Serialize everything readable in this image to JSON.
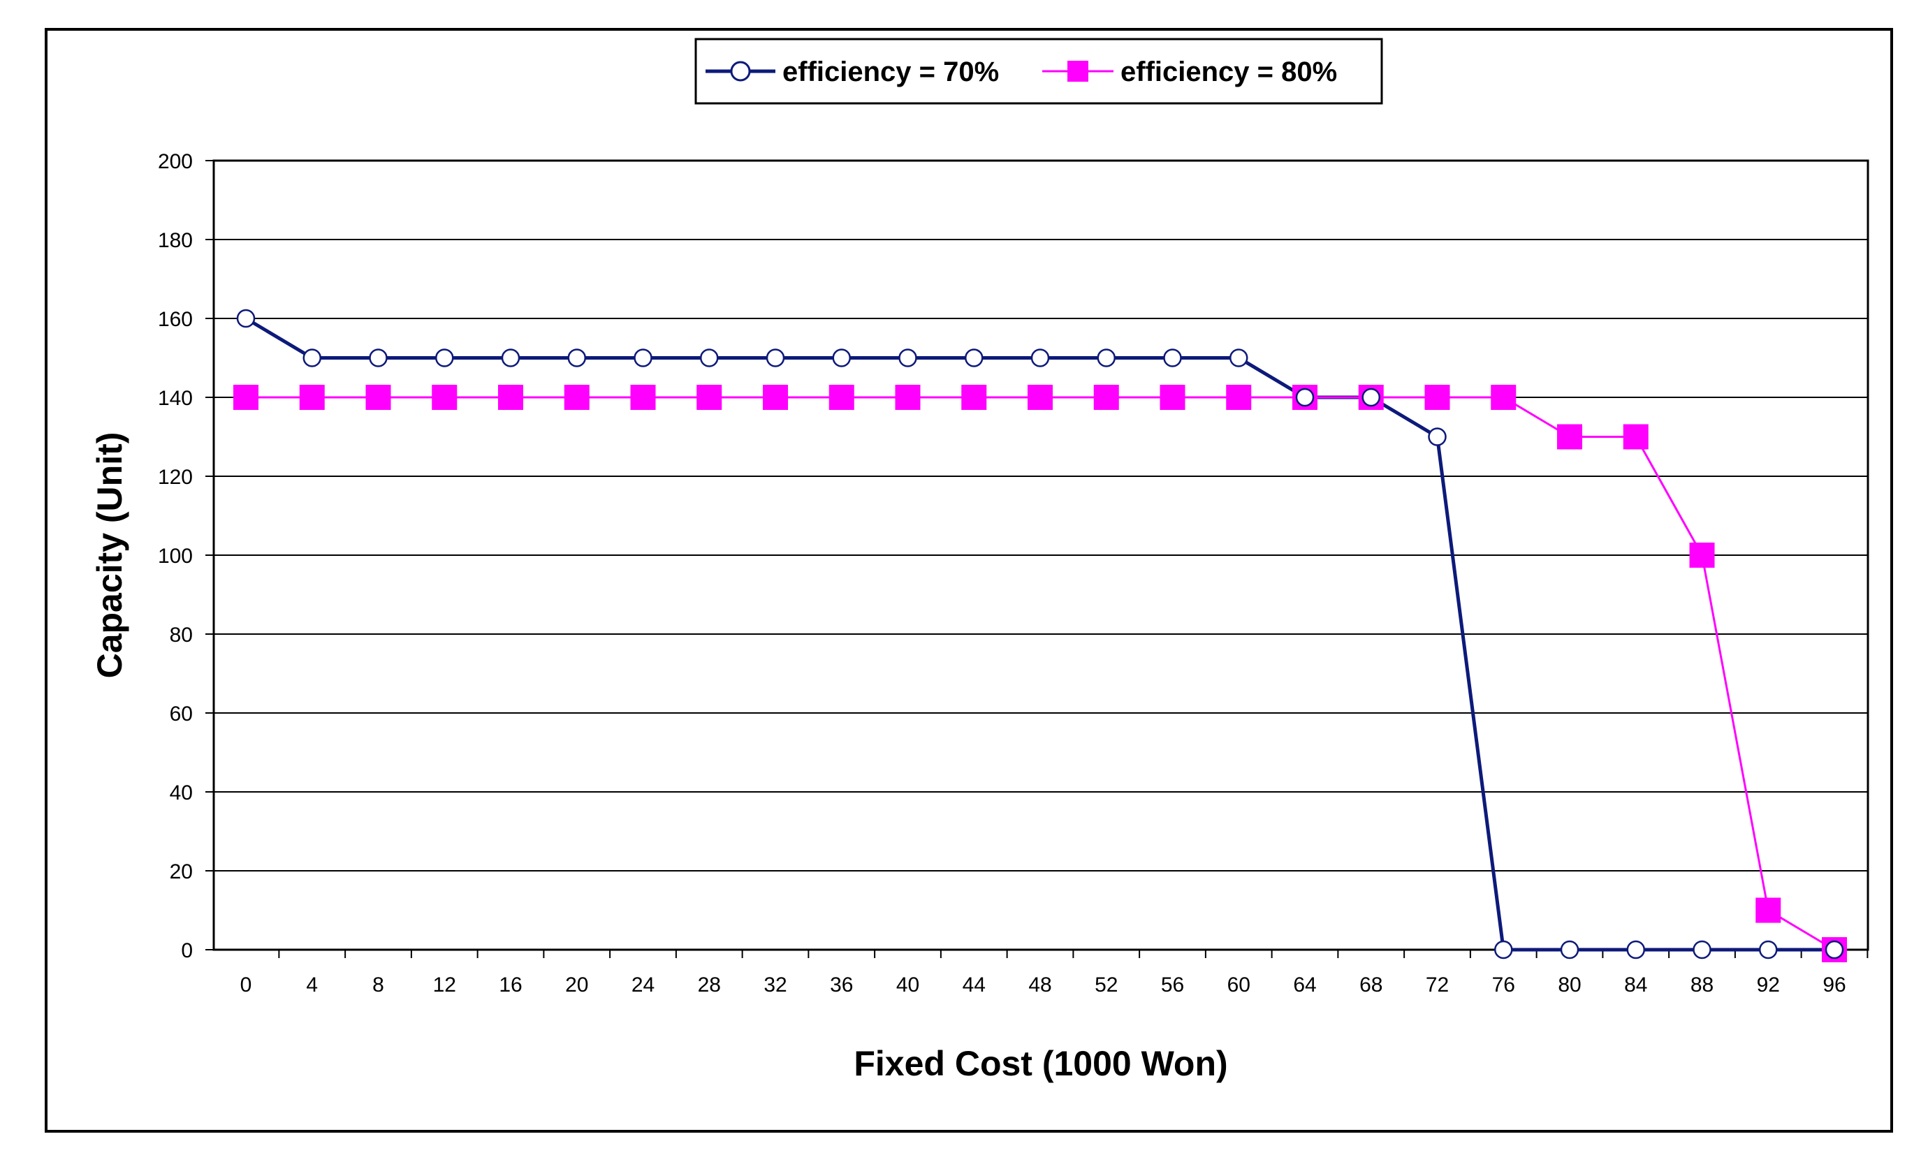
{
  "chart_data": {
    "type": "line",
    "title": "",
    "xlabel": "Fixed Cost (1000 Won)",
    "ylabel": "Capacity (Unit)",
    "x": [
      0,
      4,
      8,
      12,
      16,
      20,
      24,
      28,
      32,
      36,
      40,
      44,
      48,
      52,
      56,
      60,
      64,
      68,
      72,
      76,
      80,
      84,
      88,
      92,
      96
    ],
    "xlim": [
      0,
      96
    ],
    "ylim": [
      0,
      200
    ],
    "yticks": [
      0,
      20,
      40,
      60,
      80,
      100,
      120,
      140,
      160,
      180,
      200
    ],
    "grid": "horizontal",
    "legend": "top-center",
    "series": [
      {
        "name": "efficiency = 70%",
        "marker": "open-circle",
        "color": "#0d1a7a",
        "values": [
          160,
          150,
          150,
          150,
          150,
          150,
          150,
          150,
          150,
          150,
          150,
          150,
          150,
          150,
          150,
          150,
          140,
          140,
          130,
          0,
          0,
          0,
          0,
          0,
          0
        ]
      },
      {
        "name": "efficiency = 80%",
        "marker": "filled-square",
        "color": "#ff00ff",
        "values": [
          140,
          140,
          140,
          140,
          140,
          140,
          140,
          140,
          140,
          140,
          140,
          140,
          140,
          140,
          140,
          140,
          140,
          140,
          140,
          140,
          130,
          130,
          100,
          10,
          0
        ]
      }
    ]
  }
}
